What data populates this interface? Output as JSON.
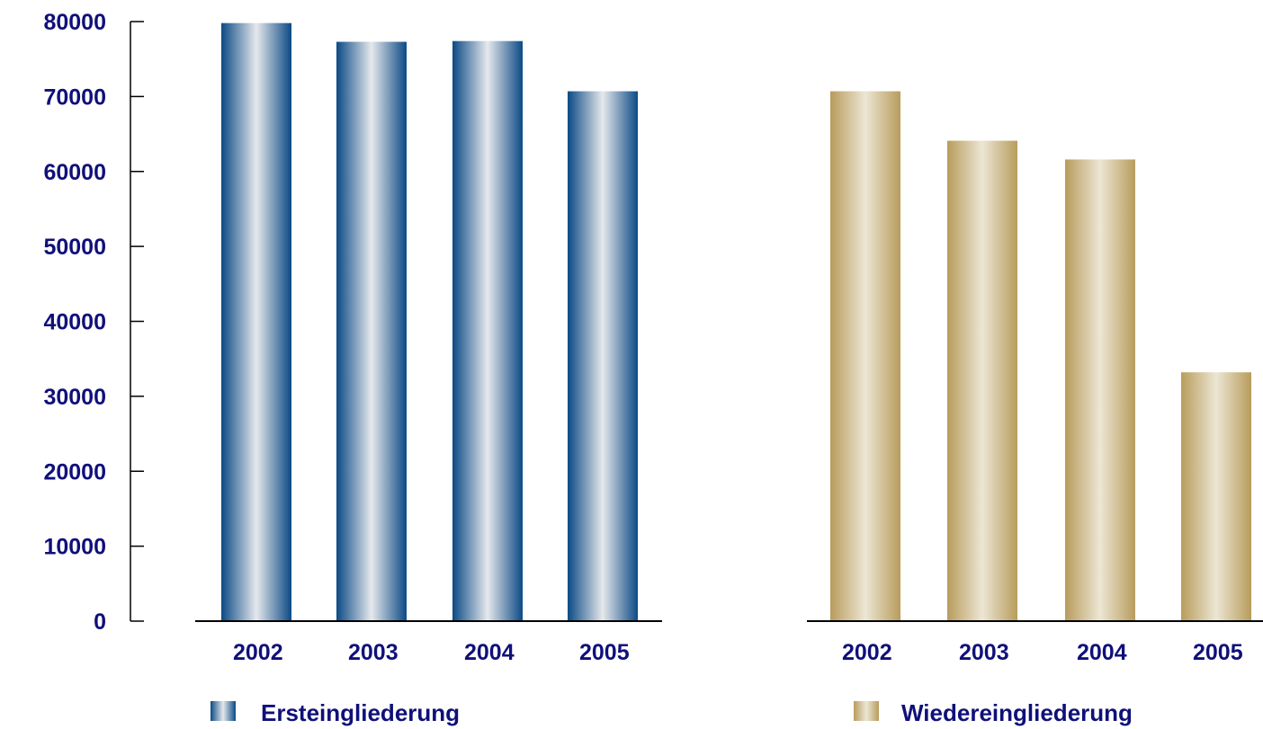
{
  "colors": {
    "text": "#10107a",
    "axis": "#000000",
    "series_blue_dark": "#0b4a85",
    "series_blue_light": "#e6e8ec",
    "series_gold_dark": "#b89c5c",
    "series_gold_light": "#ece6d4"
  },
  "chart_data": {
    "type": "bar",
    "ylim": [
      0,
      80000
    ],
    "y_ticks": [
      "0",
      "10000",
      "20000",
      "30000",
      "40000",
      "50000",
      "60000",
      "70000",
      "80000"
    ],
    "categories": [
      "2002",
      "2003",
      "2004",
      "2005"
    ],
    "series": [
      {
        "name": "Ersteingliederung",
        "values": [
          79800,
          77300,
          77400,
          70700
        ]
      },
      {
        "name": "Wiedereingliederung",
        "values": [
          70700,
          64100,
          61600,
          33200
        ]
      }
    ],
    "legend_position": "bottom",
    "grid": false
  }
}
